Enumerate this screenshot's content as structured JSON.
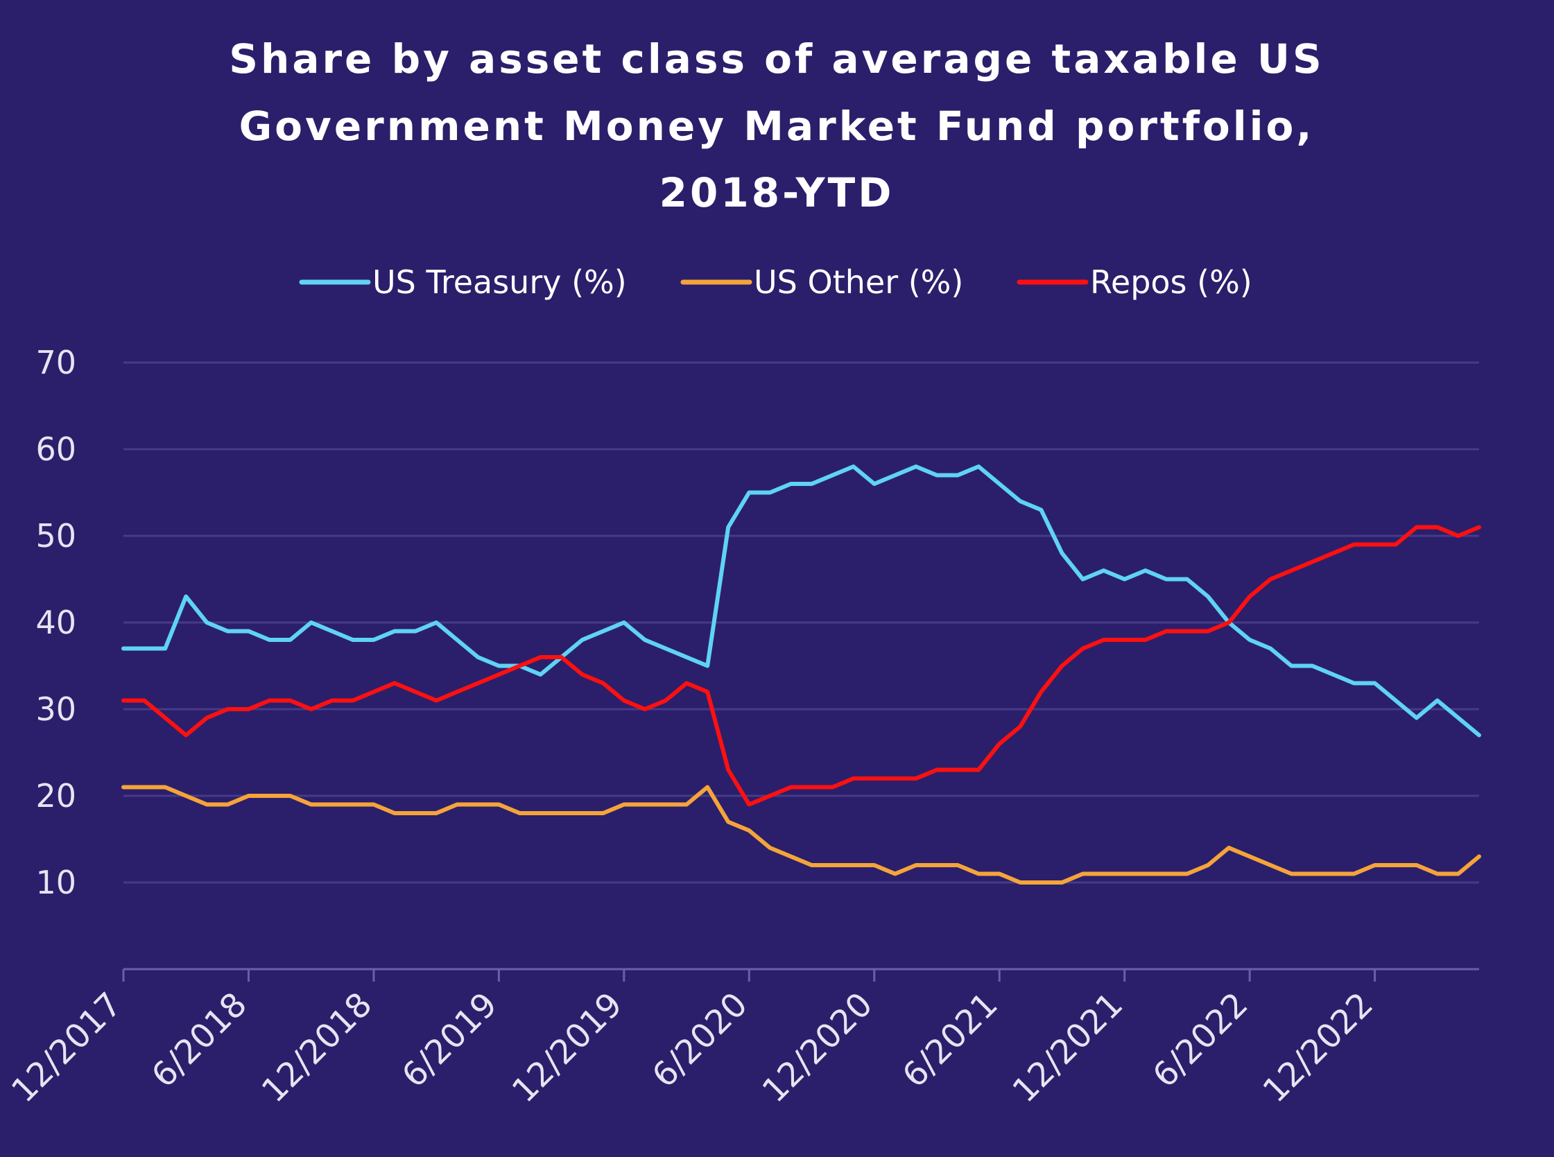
{
  "chart_data": {
    "type": "line",
    "title": "Share by asset class of average taxable US Government Money Market Fund portfolio, 2018-YTD",
    "title_lines": [
      "Share by asset class of average taxable US",
      "Government Money Market Fund portfolio,",
      "2018-YTD"
    ],
    "xlabel": "",
    "ylabel": "",
    "x_ticks": [
      "12/2017",
      "6/2018",
      "12/2018",
      "6/2019",
      "12/2019",
      "6/2020",
      "12/2020",
      "6/2021",
      "12/2021",
      "6/2022",
      "12/2022"
    ],
    "x_range": [
      "12/2017",
      "5/2023"
    ],
    "y_ticks": [
      "10",
      "20",
      "30",
      "40",
      "50",
      "60",
      "70"
    ],
    "ylim": [
      0,
      70
    ],
    "grid": true,
    "legend_position": "top-center",
    "x": [
      "12/2017",
      "1/2018",
      "2/2018",
      "3/2018",
      "4/2018",
      "5/2018",
      "6/2018",
      "7/2018",
      "8/2018",
      "9/2018",
      "10/2018",
      "11/2018",
      "12/2018",
      "1/2019",
      "2/2019",
      "3/2019",
      "4/2019",
      "5/2019",
      "6/2019",
      "7/2019",
      "8/2019",
      "9/2019",
      "10/2019",
      "11/2019",
      "12/2019",
      "1/2020",
      "2/2020",
      "3/2020",
      "4/2020",
      "5/2020",
      "6/2020",
      "7/2020",
      "8/2020",
      "9/2020",
      "10/2020",
      "11/2020",
      "12/2020",
      "1/2021",
      "2/2021",
      "3/2021",
      "4/2021",
      "5/2021",
      "6/2021",
      "7/2021",
      "8/2021",
      "9/2021",
      "10/2021",
      "11/2021",
      "12/2021",
      "1/2022",
      "2/2022",
      "3/2022",
      "4/2022",
      "5/2022",
      "6/2022",
      "7/2022",
      "8/2022",
      "9/2022",
      "10/2022",
      "11/2022",
      "12/2022",
      "1/2023",
      "2/2023",
      "3/2023",
      "4/2023",
      "5/2023"
    ],
    "series": [
      {
        "name": "US Treasury (%)",
        "color": "#5fd3f3",
        "values": [
          37,
          37,
          37,
          43,
          40,
          39,
          39,
          38,
          38,
          40,
          39,
          38,
          38,
          39,
          39,
          40,
          38,
          36,
          35,
          35,
          34,
          36,
          38,
          39,
          40,
          38,
          37,
          36,
          35,
          51,
          55,
          55,
          56,
          56,
          57,
          58,
          56,
          57,
          58,
          57,
          57,
          58,
          56,
          54,
          53,
          48,
          45,
          46,
          45,
          46,
          45,
          45,
          43,
          40,
          38,
          37,
          35,
          35,
          34,
          33,
          33,
          31,
          29,
          31,
          29,
          27
        ]
      },
      {
        "name": "US Other (%)",
        "color": "#f5a43a",
        "values": [
          21,
          21,
          21,
          20,
          19,
          19,
          20,
          20,
          20,
          19,
          19,
          19,
          19,
          18,
          18,
          18,
          19,
          19,
          19,
          18,
          18,
          18,
          18,
          18,
          19,
          19,
          19,
          19,
          21,
          17,
          16,
          14,
          13,
          12,
          12,
          12,
          12,
          11,
          12,
          12,
          12,
          11,
          11,
          10,
          10,
          10,
          11,
          11,
          11,
          11,
          11,
          11,
          12,
          14,
          13,
          12,
          11,
          11,
          11,
          11,
          12,
          12,
          12,
          11,
          11,
          13
        ]
      },
      {
        "name": "Repos (%)",
        "color": "#ff1010",
        "values": [
          31,
          31,
          29,
          27,
          29,
          30,
          30,
          31,
          31,
          30,
          31,
          31,
          32,
          33,
          32,
          31,
          32,
          33,
          34,
          35,
          36,
          36,
          34,
          33,
          31,
          30,
          31,
          33,
          32,
          23,
          19,
          20,
          21,
          21,
          21,
          22,
          22,
          22,
          22,
          23,
          23,
          23,
          26,
          28,
          32,
          35,
          37,
          38,
          38,
          38,
          39,
          39,
          39,
          40,
          43,
          45,
          46,
          47,
          48,
          49,
          49,
          49,
          51,
          51,
          50,
          51
        ]
      }
    ]
  }
}
